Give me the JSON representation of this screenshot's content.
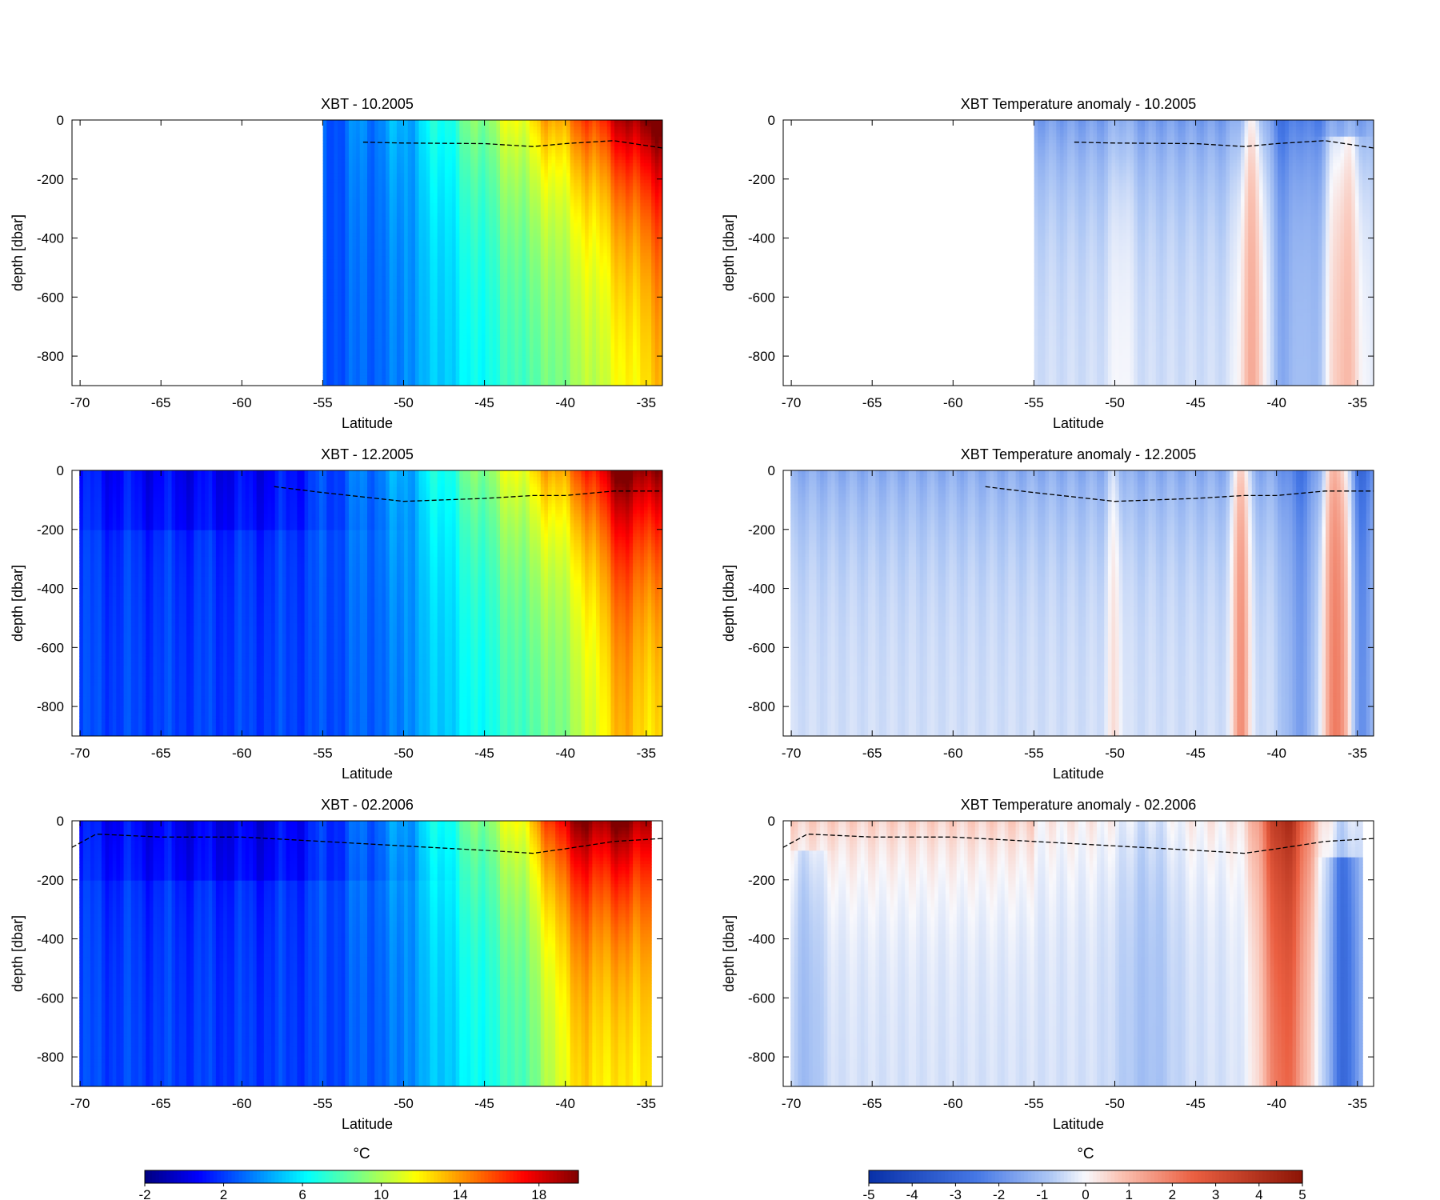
{
  "figure": {
    "colorbar_unit_label": "°C"
  },
  "chart_data": [
    {
      "type": "heatmap",
      "panel": "temp-oct-2005",
      "title": "XBT - 10.2005",
      "xlabel": "Latitude",
      "ylabel": "depth [dbar]",
      "xlim": [
        -70.5,
        -34
      ],
      "ylim": [
        -900,
        0
      ],
      "xticks": [
        -70,
        -65,
        -60,
        -55,
        -50,
        -45,
        -40,
        -35
      ],
      "yticks": [
        0,
        -200,
        -400,
        -600,
        -800
      ],
      "colormap": "jet",
      "clim": [
        -2,
        20
      ],
      "data_x_range": [
        -55,
        -34
      ],
      "mixed_layer_depth": [
        [
          -52.5,
          -75
        ],
        [
          -50,
          -78
        ],
        [
          -45,
          -80
        ],
        [
          -42,
          -90
        ],
        [
          -40,
          -80
        ],
        [
          -37,
          -70
        ],
        [
          -34,
          -95
        ]
      ]
    },
    {
      "type": "heatmap",
      "panel": "anomaly-oct-2005",
      "title": "XBT Temperature anomaly - 10.2005",
      "xlabel": "Latitude",
      "ylabel": "depth [dbar]",
      "xlim": [
        -70.5,
        -34
      ],
      "ylim": [
        -900,
        0
      ],
      "xticks": [
        -70,
        -65,
        -60,
        -55,
        -50,
        -45,
        -40,
        -35
      ],
      "yticks": [
        0,
        -200,
        -400,
        -600,
        -800
      ],
      "colormap": "blue-white-red",
      "clim": [
        -5,
        5
      ],
      "data_x_range": [
        -55,
        -34
      ],
      "mixed_layer_depth": [
        [
          -52.5,
          -75
        ],
        [
          -50,
          -78
        ],
        [
          -45,
          -80
        ],
        [
          -42,
          -90
        ],
        [
          -40,
          -80
        ],
        [
          -37,
          -70
        ],
        [
          -34,
          -95
        ]
      ]
    },
    {
      "type": "heatmap",
      "panel": "temp-dec-2005",
      "title": "XBT - 12.2005",
      "xlabel": "Latitude",
      "ylabel": "depth [dbar]",
      "xlim": [
        -70.5,
        -34
      ],
      "ylim": [
        -900,
        0
      ],
      "xticks": [
        -70,
        -65,
        -60,
        -55,
        -50,
        -45,
        -40,
        -35
      ],
      "yticks": [
        0,
        -200,
        -400,
        -600,
        -800
      ],
      "colormap": "jet",
      "clim": [
        -2,
        20
      ],
      "data_x_range": [
        -70,
        -34
      ],
      "mixed_layer_depth": [
        [
          -58,
          -55
        ],
        [
          -55,
          -75
        ],
        [
          -50,
          -105
        ],
        [
          -45,
          -95
        ],
        [
          -42,
          -85
        ],
        [
          -40,
          -85
        ],
        [
          -37,
          -70
        ],
        [
          -34,
          -70
        ]
      ]
    },
    {
      "type": "heatmap",
      "panel": "anomaly-dec-2005",
      "title": "XBT Temperature anomaly - 12.2005",
      "xlabel": "Latitude",
      "ylabel": "depth [dbar]",
      "xlim": [
        -70.5,
        -34
      ],
      "ylim": [
        -900,
        0
      ],
      "xticks": [
        -70,
        -65,
        -60,
        -55,
        -50,
        -45,
        -40,
        -35
      ],
      "yticks": [
        0,
        -200,
        -400,
        -600,
        -800
      ],
      "colormap": "blue-white-red",
      "clim": [
        -5,
        5
      ],
      "data_x_range": [
        -70,
        -34
      ],
      "mixed_layer_depth": [
        [
          -58,
          -55
        ],
        [
          -55,
          -75
        ],
        [
          -50,
          -105
        ],
        [
          -45,
          -95
        ],
        [
          -42,
          -85
        ],
        [
          -40,
          -85
        ],
        [
          -37,
          -70
        ],
        [
          -34,
          -70
        ]
      ]
    },
    {
      "type": "heatmap",
      "panel": "temp-feb-2006",
      "title": "XBT - 02.2006",
      "xlabel": "Latitude",
      "ylabel": "depth [dbar]",
      "xlim": [
        -70.5,
        -34
      ],
      "ylim": [
        -900,
        0
      ],
      "xticks": [
        -70,
        -65,
        -60,
        -55,
        -50,
        -45,
        -40,
        -35
      ],
      "yticks": [
        0,
        -200,
        -400,
        -600,
        -800
      ],
      "colormap": "jet",
      "clim": [
        -2,
        20
      ],
      "data_x_range": [
        -70,
        -34.7
      ],
      "mixed_layer_depth": [
        [
          -70.5,
          -90
        ],
        [
          -69,
          -45
        ],
        [
          -65,
          -55
        ],
        [
          -60,
          -55
        ],
        [
          -55,
          -70
        ],
        [
          -50,
          -85
        ],
        [
          -45,
          -100
        ],
        [
          -42,
          -110
        ],
        [
          -40,
          -95
        ],
        [
          -37,
          -70
        ],
        [
          -34,
          -60
        ]
      ]
    },
    {
      "type": "heatmap",
      "panel": "anomaly-feb-2006",
      "title": "XBT Temperature anomaly - 02.2006",
      "xlabel": "Latitude",
      "ylabel": "depth [dbar]",
      "xlim": [
        -70.5,
        -34
      ],
      "ylim": [
        -900,
        0
      ],
      "xticks": [
        -70,
        -65,
        -60,
        -55,
        -50,
        -45,
        -40,
        -35
      ],
      "yticks": [
        0,
        -200,
        -400,
        -600,
        -800
      ],
      "colormap": "blue-white-red",
      "clim": [
        -5,
        5
      ],
      "data_x_range": [
        -70,
        -34.7
      ],
      "mixed_layer_depth": [
        [
          -70.5,
          -90
        ],
        [
          -69,
          -45
        ],
        [
          -65,
          -55
        ],
        [
          -60,
          -55
        ],
        [
          -55,
          -70
        ],
        [
          -50,
          -85
        ],
        [
          -45,
          -100
        ],
        [
          -42,
          -110
        ],
        [
          -40,
          -95
        ],
        [
          -37,
          -70
        ],
        [
          -34,
          -60
        ]
      ]
    },
    {
      "type": "colorbar",
      "panel": "colorbar-temperature",
      "label": "°C",
      "colormap": "jet",
      "range": [
        -2,
        20
      ],
      "ticks": [
        -2,
        2,
        6,
        10,
        14,
        18
      ]
    },
    {
      "type": "colorbar",
      "panel": "colorbar-anomaly",
      "label": "°C",
      "colormap": "blue-white-red",
      "range": [
        -5,
        5
      ],
      "ticks": [
        -5,
        -4,
        -3,
        -2,
        -1,
        0,
        1,
        2,
        3,
        4,
        5
      ]
    }
  ]
}
